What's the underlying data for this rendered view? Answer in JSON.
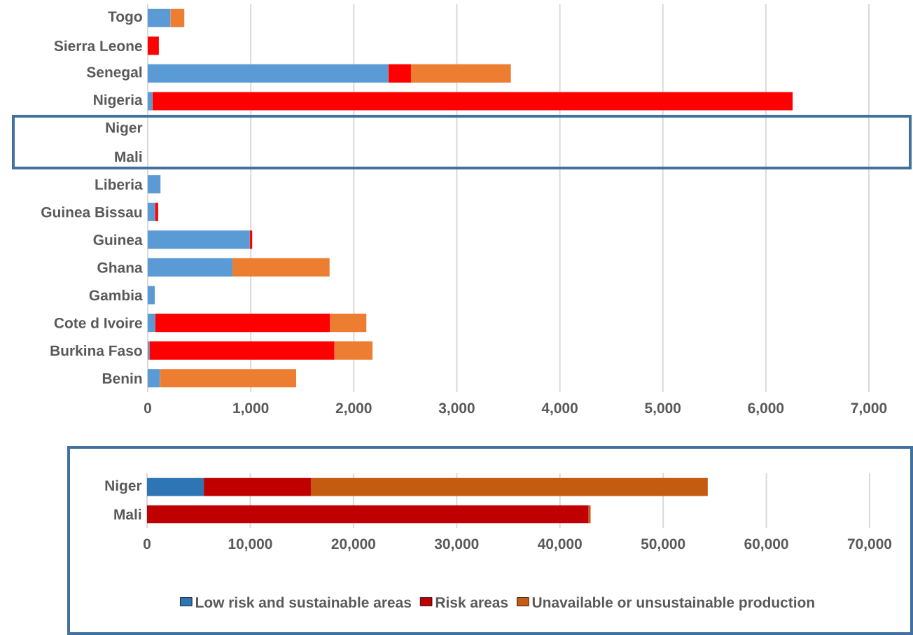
{
  "chart_data": [
    {
      "type": "bar",
      "orientation": "horizontal",
      "stacked": true,
      "grid": "x",
      "legend": false,
      "categories": [
        "Togo",
        "Sierra Leone",
        "Senegal",
        "Nigeria",
        "Niger",
        "Mali",
        "Liberia",
        "Guinea Bissau",
        "Guinea",
        "Ghana",
        "Gambia",
        "Cote d Ivoire",
        "Burkina Faso",
        "Benin"
      ],
      "series": [
        {
          "color": "#5b9bd5",
          "values": [
            220,
            0,
            2335,
            45,
            null,
            null,
            124,
            71,
            991,
            822,
            68,
            71,
            16,
            118
          ]
        },
        {
          "color": "#ff0000",
          "values": [
            0,
            108,
            220,
            6215,
            null,
            null,
            0,
            30,
            23,
            0,
            0,
            1697,
            1796,
            0
          ]
        },
        {
          "color": "#ed7d31",
          "values": [
            135,
            0,
            970,
            0,
            null,
            null,
            0,
            0,
            0,
            943,
            0,
            354,
            370,
            1323
          ]
        }
      ],
      "xlim": [
        0,
        7000
      ],
      "xticks": [
        0,
        {
          "value": 1000,
          "label": "1,000"
        },
        {
          "value": 2000,
          "label": "2,000"
        },
        {
          "value": 3000,
          "label": "3,000"
        },
        {
          "value": 4000,
          "label": "4,000"
        },
        {
          "value": 5000,
          "label": "5,000"
        },
        {
          "value": 6000,
          "label": "6,000"
        },
        {
          "value": 7000,
          "label": "7,000"
        }
      ]
    },
    {
      "type": "bar",
      "orientation": "horizontal",
      "stacked": true,
      "grid": "x",
      "legend": "bottom",
      "categories": [
        "Niger",
        "Mali"
      ],
      "series": [
        {
          "name": "Low risk and sustainable areas",
          "color": "#2e75b6",
          "values": [
            5500,
            0
          ]
        },
        {
          "name": "Risk areas",
          "color": "#c00000",
          "values": [
            10370,
            42770
          ]
        },
        {
          "name": "Unavailable or unsustainable production",
          "color": "#c55a11",
          "values": [
            38450,
            200
          ]
        }
      ],
      "xlim": [
        0,
        70000
      ],
      "xticks": [
        0,
        {
          "value": 10000,
          "label": "10,000"
        },
        {
          "value": 20000,
          "label": "20,000"
        },
        {
          "value": 30000,
          "label": "30,000"
        },
        {
          "value": 40000,
          "label": "40,000"
        },
        {
          "value": 50000,
          "label": "50,000"
        },
        {
          "value": 60000,
          "label": "60,000"
        },
        {
          "value": 70000,
          "label": "70,000"
        }
      ]
    }
  ]
}
